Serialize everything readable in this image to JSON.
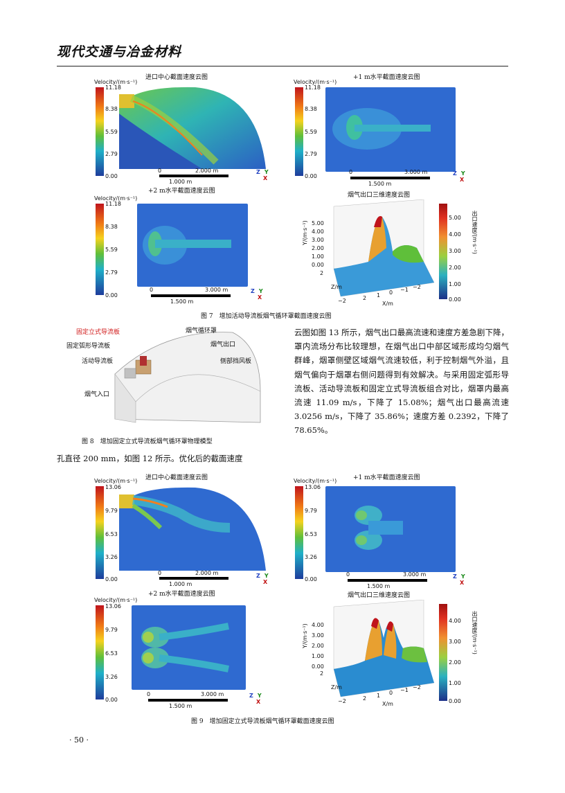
{
  "header": {
    "journal": "现代交通与冶金材料"
  },
  "fig7": {
    "caption": "图 7　增加活动导流板烟气循环罩截面速度云图",
    "p1": {
      "title": "进口中心截面速度云图",
      "cb_title": "Velocity/(m·s⁻¹)",
      "ticks": [
        "11.18",
        "8.38",
        "5.59",
        "2.79",
        "0.00"
      ],
      "scale_top": "2.000 m",
      "scale_bottom": "1.000 m",
      "s0": "0"
    },
    "p2": {
      "title": "+1 m水平截面速度云图",
      "cb_title": "Velocity/(m·s⁻¹)",
      "ticks": [
        "11.18",
        "8.38",
        "5.59",
        "2.79",
        "0.00"
      ],
      "scale_top": "3.000 m",
      "scale_bottom": "1.500 m",
      "s0": "0"
    },
    "p3": {
      "title": "+2 m水平截面速度云图",
      "cb_title": "Velocity/(m·s⁻¹)",
      "ticks": [
        "11.18",
        "8.38",
        "5.59",
        "2.79",
        "0.00"
      ],
      "scale_top": "3.000 m",
      "scale_bottom": "1.500 m",
      "s0": "0"
    },
    "p4": {
      "title": "烟气出口三维速度云图",
      "yticks": [
        "5.00",
        "4.00",
        "3.00",
        "2.00",
        "1.00",
        "0.00"
      ],
      "cticks": [
        "5.00",
        "4.00",
        "3.00",
        "2.00",
        "1.00",
        "0.00"
      ],
      "ylabel": "Y/(m·s⁻¹)",
      "clabel": "出口速度/(m·s⁻¹)",
      "zlabel": "Z/m",
      "xlabel": "X/m",
      "zticks": [
        "2",
        "0",
        "−2"
      ],
      "xticks": [
        "2",
        "1",
        "0",
        "−1",
        "−2"
      ]
    }
  },
  "fig8": {
    "caption": "图 8　增加固定立式导流板烟气循环罩物理模型",
    "labels": {
      "fixed_vertical": "固定立式导流板",
      "fixed_arc": "固定弧形导流板",
      "movable": "活动导流板",
      "inlet": "烟气入口",
      "hood": "烟气循环罩",
      "outlet": "烟气出口",
      "side": "侧部挡风板"
    }
  },
  "body": {
    "right_para": "云图如图 13 所示，烟气出口最高流速和速度方差急剧下降，罩内流场分布比较理想，在烟气出口中部区域形成均匀烟气群峰，烟罩侧壁区域烟气流速较低，利于控制烟气外溢，且烟气偏向于烟罩右侧问题得到有效解决。与采用固定弧形导流板、活动导流板和固定立式导流板组合对比，烟罩内最高流速 11.09 m/s，下降了 15.08%；烟气出口最高流速 3.0256 m/s，下降了 35.86%；速度方差 0.2392，下降了 78.65%。",
    "left_line": "孔直径 200 mm，如图 12 所示。优化后的截面速度"
  },
  "fig9": {
    "caption": "图 9　增加固定立式导流板烟气循环罩截面速度云图",
    "p1": {
      "title": "进口中心截面速度云图",
      "cb_title": "Velocity/(m·s⁻¹)",
      "ticks": [
        "13.06",
        "9.79",
        "6.53",
        "3.26",
        "0.00"
      ],
      "scale_top": "2.000 m",
      "scale_bottom": "1.000 m",
      "s0": "0"
    },
    "p2": {
      "title": "+1 m水平截面速度云图",
      "cb_title": "Velocity/(m·s⁻¹)",
      "ticks": [
        "13.06",
        "9.79",
        "6.53",
        "3.26",
        "0.00"
      ],
      "scale_top": "3.000 m",
      "scale_bottom": "1.500 m",
      "s0": "0"
    },
    "p3": {
      "title": "+2 m水平截面速度云图",
      "cb_title": "Velocity/(m·s⁻¹)",
      "ticks": [
        "13.06",
        "9.79",
        "6.53",
        "3.26",
        "0.00"
      ],
      "scale_top": "3.000 m",
      "scale_bottom": "1.500 m",
      "s0": "0"
    },
    "p4": {
      "title": "烟气出口三维速度云图",
      "yticks": [
        "4.00",
        "3.00",
        "2.00",
        "1.00",
        "0.00"
      ],
      "cticks": [
        "4.00",
        "3.00",
        "2.00",
        "1.00",
        "0.00"
      ],
      "ylabel": "Y/(m·s⁻¹)",
      "clabel": "出口速度/(m·s⁻¹)",
      "zlabel": "Z/m",
      "xlabel": "X/m",
      "zticks": [
        "2",
        "0",
        "−2"
      ],
      "xticks": [
        "2",
        "1",
        "0",
        "−1",
        "−2"
      ]
    }
  },
  "axes_triad": {
    "z": "Z",
    "y": "Y",
    "x": "X"
  },
  "footer": {
    "page": "· 50 ·"
  },
  "colors": {
    "jet_top": "#c0141c",
    "jet_low": "#1e3c9c",
    "field_bg": "#2d64c8"
  }
}
